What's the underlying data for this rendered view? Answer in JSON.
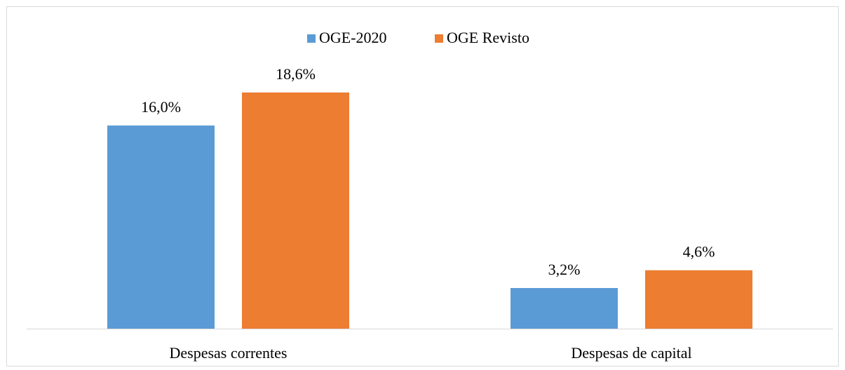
{
  "chart_data": {
    "type": "bar",
    "categories": [
      "Despesas correntes",
      "Despesas de capital"
    ],
    "series": [
      {
        "name": "OGE-2020",
        "color": "#5b9bd5",
        "values": [
          16.0,
          3.2
        ],
        "value_labels": [
          "16,0%",
          "3,2%"
        ]
      },
      {
        "name": "OGE Revisto",
        "color": "#ed7d31",
        "values": [
          18.6,
          4.6
        ],
        "value_labels": [
          "18,6%",
          "4,6%"
        ]
      }
    ],
    "legend": "top"
  }
}
